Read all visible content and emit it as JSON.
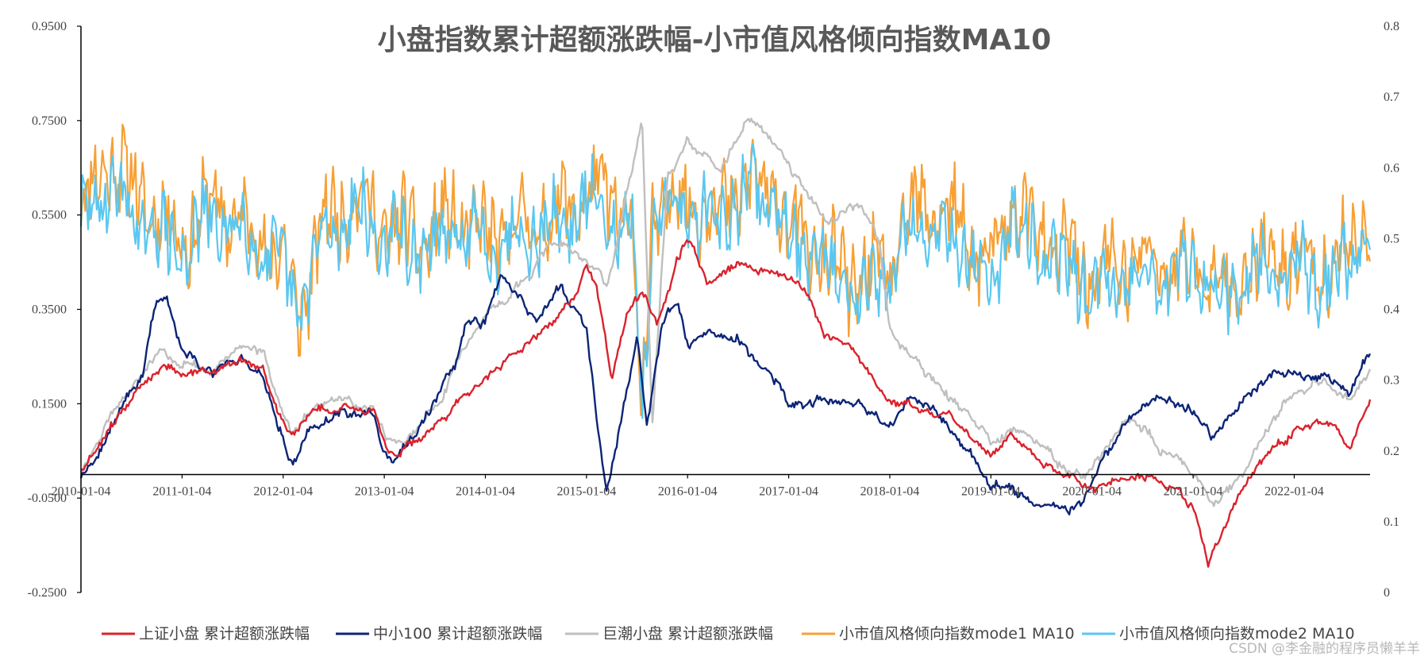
{
  "chart_data": {
    "type": "line",
    "title": "小盘指数累计超额涨跌幅-小市值风格倾向指数MA10",
    "watermark": "CSDN @李金融的程序员懒羊羊",
    "x_tick_labels": [
      "2010-01-04",
      "2011-01-04",
      "2012-01-04",
      "2013-01-04",
      "2014-01-04",
      "2015-01-04",
      "2016-01-04",
      "2017-01-04",
      "2018-01-04",
      "2019-01-04",
      "2020-01-04",
      "2021-01-04",
      "2022-01-04"
    ],
    "x_range": [
      2010.0,
      2022.75
    ],
    "y_left": {
      "ticks": [
        0.95,
        0.75,
        0.55,
        0.35,
        0.15,
        -0.05,
        -0.25
      ],
      "labels": [
        "0.9500",
        "0.7500",
        "0.5500",
        "0.3500",
        "0.1500",
        "-0.0500",
        "-0.2500"
      ],
      "range": [
        -0.25,
        0.95
      ]
    },
    "y_right": {
      "ticks": [
        0.8,
        0.7,
        0.6,
        0.5,
        0.4,
        0.3,
        0.2,
        0.1,
        0
      ],
      "labels": [
        "0.8",
        "0.7",
        "0.6",
        "0.5",
        "0.4",
        "0.3",
        "0.2",
        "0.1",
        "0"
      ],
      "range": [
        0,
        0.8
      ]
    },
    "series": [
      {
        "name": "小市值风格倾向指数mode1 MA10",
        "axis": "right",
        "color": "#f7a035",
        "kind": "noisy",
        "amp": 0.045,
        "seed": 11,
        "points": [
          [
            2010.0,
            0.54
          ],
          [
            2010.3,
            0.62
          ],
          [
            2010.5,
            0.57
          ],
          [
            2010.8,
            0.53
          ],
          [
            2011.0,
            0.5
          ],
          [
            2011.3,
            0.55
          ],
          [
            2011.6,
            0.52
          ],
          [
            2012.0,
            0.47
          ],
          [
            2012.15,
            0.39
          ],
          [
            2012.4,
            0.52
          ],
          [
            2012.7,
            0.56
          ],
          [
            2013.0,
            0.52
          ],
          [
            2013.4,
            0.5
          ],
          [
            2013.7,
            0.53
          ],
          [
            2014.0,
            0.5
          ],
          [
            2014.4,
            0.52
          ],
          [
            2014.8,
            0.54
          ],
          [
            2015.0,
            0.57
          ],
          [
            2015.3,
            0.55
          ],
          [
            2015.45,
            0.52
          ],
          [
            2015.55,
            0.24
          ],
          [
            2015.65,
            0.53
          ],
          [
            2015.9,
            0.56
          ],
          [
            2016.3,
            0.54
          ],
          [
            2016.6,
            0.58
          ],
          [
            2016.9,
            0.56
          ],
          [
            2017.0,
            0.52
          ],
          [
            2017.4,
            0.46
          ],
          [
            2017.7,
            0.44
          ],
          [
            2018.0,
            0.46
          ],
          [
            2018.3,
            0.55
          ],
          [
            2018.7,
            0.52
          ],
          [
            2019.0,
            0.45
          ],
          [
            2019.2,
            0.55
          ],
          [
            2019.6,
            0.49
          ],
          [
            2020.0,
            0.45
          ],
          [
            2020.5,
            0.47
          ],
          [
            2021.0,
            0.46
          ],
          [
            2021.3,
            0.43
          ],
          [
            2021.6,
            0.46
          ],
          [
            2022.0,
            0.47
          ],
          [
            2022.4,
            0.46
          ],
          [
            2022.75,
            0.53
          ]
        ]
      },
      {
        "name": "小市值风格倾向指数mode2 MA10",
        "axis": "right",
        "color": "#5bc7ef",
        "kind": "noisy",
        "amp": 0.038,
        "seed": 29,
        "points": [
          [
            2010.0,
            0.52
          ],
          [
            2010.3,
            0.58
          ],
          [
            2010.5,
            0.53
          ],
          [
            2010.8,
            0.5
          ],
          [
            2011.0,
            0.48
          ],
          [
            2011.3,
            0.53
          ],
          [
            2011.6,
            0.51
          ],
          [
            2012.0,
            0.46
          ],
          [
            2012.15,
            0.4
          ],
          [
            2012.4,
            0.5
          ],
          [
            2012.7,
            0.54
          ],
          [
            2013.0,
            0.5
          ],
          [
            2013.4,
            0.48
          ],
          [
            2013.7,
            0.51
          ],
          [
            2014.0,
            0.49
          ],
          [
            2014.4,
            0.51
          ],
          [
            2014.8,
            0.52
          ],
          [
            2015.0,
            0.55
          ],
          [
            2015.3,
            0.53
          ],
          [
            2015.45,
            0.5
          ],
          [
            2015.55,
            0.25
          ],
          [
            2015.65,
            0.52
          ],
          [
            2015.9,
            0.55
          ],
          [
            2016.3,
            0.52
          ],
          [
            2016.6,
            0.57
          ],
          [
            2016.9,
            0.55
          ],
          [
            2017.0,
            0.5
          ],
          [
            2017.4,
            0.45
          ],
          [
            2017.7,
            0.43
          ],
          [
            2018.0,
            0.45
          ],
          [
            2018.3,
            0.52
          ],
          [
            2018.7,
            0.5
          ],
          [
            2019.0,
            0.43
          ],
          [
            2019.2,
            0.53
          ],
          [
            2019.6,
            0.47
          ],
          [
            2020.0,
            0.43
          ],
          [
            2020.5,
            0.45
          ],
          [
            2021.0,
            0.45
          ],
          [
            2021.3,
            0.41
          ],
          [
            2021.6,
            0.45
          ],
          [
            2022.0,
            0.46
          ],
          [
            2022.4,
            0.44
          ],
          [
            2022.75,
            0.52
          ]
        ]
      },
      {
        "name": "巨潮小盘 累计超额涨跌幅",
        "axis": "left",
        "color": "#bfbfbf",
        "kind": "smooth",
        "amp": 0.012,
        "seed": 47,
        "points": [
          [
            2010.0,
            0.01
          ],
          [
            2010.2,
            0.08
          ],
          [
            2010.4,
            0.16
          ],
          [
            2010.6,
            0.2
          ],
          [
            2010.8,
            0.27
          ],
          [
            2011.0,
            0.24
          ],
          [
            2011.3,
            0.22
          ],
          [
            2011.6,
            0.27
          ],
          [
            2011.8,
            0.25
          ],
          [
            2012.0,
            0.12
          ],
          [
            2012.1,
            0.08
          ],
          [
            2012.3,
            0.14
          ],
          [
            2012.6,
            0.16
          ],
          [
            2012.9,
            0.14
          ],
          [
            2013.0,
            0.08
          ],
          [
            2013.2,
            0.07
          ],
          [
            2013.5,
            0.14
          ],
          [
            2013.8,
            0.28
          ],
          [
            2014.0,
            0.33
          ],
          [
            2014.2,
            0.36
          ],
          [
            2014.4,
            0.42
          ],
          [
            2014.6,
            0.48
          ],
          [
            2014.8,
            0.5
          ],
          [
            2015.0,
            0.45
          ],
          [
            2015.2,
            0.4
          ],
          [
            2015.4,
            0.6
          ],
          [
            2015.55,
            0.76
          ],
          [
            2015.65,
            0.1
          ],
          [
            2015.8,
            0.62
          ],
          [
            2016.0,
            0.72
          ],
          [
            2016.3,
            0.64
          ],
          [
            2016.6,
            0.75
          ],
          [
            2016.9,
            0.7
          ],
          [
            2017.0,
            0.66
          ],
          [
            2017.2,
            0.6
          ],
          [
            2017.4,
            0.54
          ],
          [
            2017.7,
            0.58
          ],
          [
            2017.9,
            0.48
          ],
          [
            2018.0,
            0.32
          ],
          [
            2018.2,
            0.25
          ],
          [
            2018.5,
            0.18
          ],
          [
            2018.8,
            0.12
          ],
          [
            2019.0,
            0.06
          ],
          [
            2019.3,
            0.1
          ],
          [
            2019.6,
            0.04
          ],
          [
            2019.9,
            -0.01
          ],
          [
            2020.1,
            0.03
          ],
          [
            2020.4,
            0.13
          ],
          [
            2020.7,
            0.06
          ],
          [
            2021.0,
            0.01
          ],
          [
            2021.2,
            -0.06
          ],
          [
            2021.4,
            -0.02
          ],
          [
            2021.7,
            0.08
          ],
          [
            2022.0,
            0.18
          ],
          [
            2022.3,
            0.2
          ],
          [
            2022.55,
            0.16
          ],
          [
            2022.75,
            0.22
          ]
        ]
      },
      {
        "name": "中小100 累计超额涨跌幅",
        "axis": "left",
        "color": "#0d2477",
        "kind": "smooth",
        "amp": 0.013,
        "seed": 63,
        "points": [
          [
            2010.0,
            -0.01
          ],
          [
            2010.2,
            0.06
          ],
          [
            2010.4,
            0.16
          ],
          [
            2010.6,
            0.21
          ],
          [
            2010.75,
            0.37
          ],
          [
            2010.85,
            0.38
          ],
          [
            2011.0,
            0.26
          ],
          [
            2011.3,
            0.22
          ],
          [
            2011.6,
            0.25
          ],
          [
            2011.8,
            0.21
          ],
          [
            2012.0,
            0.09
          ],
          [
            2012.1,
            0.03
          ],
          [
            2012.3,
            0.12
          ],
          [
            2012.6,
            0.14
          ],
          [
            2012.9,
            0.13
          ],
          [
            2013.0,
            0.05
          ],
          [
            2013.1,
            0.02
          ],
          [
            2013.4,
            0.12
          ],
          [
            2013.7,
            0.25
          ],
          [
            2013.8,
            0.33
          ],
          [
            2014.0,
            0.32
          ],
          [
            2014.15,
            0.42
          ],
          [
            2014.3,
            0.38
          ],
          [
            2014.5,
            0.33
          ],
          [
            2014.75,
            0.4
          ],
          [
            2015.0,
            0.3
          ],
          [
            2015.1,
            0.11
          ],
          [
            2015.2,
            -0.05
          ],
          [
            2015.35,
            0.12
          ],
          [
            2015.5,
            0.28
          ],
          [
            2015.6,
            0.1
          ],
          [
            2015.75,
            0.32
          ],
          [
            2015.9,
            0.36
          ],
          [
            2016.0,
            0.27
          ],
          [
            2016.2,
            0.3
          ],
          [
            2016.5,
            0.29
          ],
          [
            2016.7,
            0.23
          ],
          [
            2016.9,
            0.2
          ],
          [
            2017.0,
            0.14
          ],
          [
            2017.4,
            0.16
          ],
          [
            2017.7,
            0.14
          ],
          [
            2018.0,
            0.12
          ],
          [
            2018.2,
            0.15
          ],
          [
            2018.5,
            0.12
          ],
          [
            2018.8,
            0.04
          ],
          [
            2019.0,
            -0.02
          ],
          [
            2019.3,
            -0.04
          ],
          [
            2019.6,
            -0.08
          ],
          [
            2019.9,
            -0.07
          ],
          [
            2020.1,
            0.02
          ],
          [
            2020.4,
            0.14
          ],
          [
            2020.7,
            0.17
          ],
          [
            2021.0,
            0.14
          ],
          [
            2021.2,
            0.08
          ],
          [
            2021.5,
            0.16
          ],
          [
            2021.8,
            0.22
          ],
          [
            2022.0,
            0.23
          ],
          [
            2022.3,
            0.21
          ],
          [
            2022.55,
            0.17
          ],
          [
            2022.75,
            0.26
          ]
        ]
      },
      {
        "name": "上证小盘 累计超额涨跌幅",
        "axis": "left",
        "color": "#d9232d",
        "kind": "smooth",
        "amp": 0.011,
        "seed": 81,
        "points": [
          [
            2010.0,
            0.01
          ],
          [
            2010.2,
            0.07
          ],
          [
            2010.4,
            0.13
          ],
          [
            2010.6,
            0.18
          ],
          [
            2010.8,
            0.23
          ],
          [
            2011.0,
            0.22
          ],
          [
            2011.3,
            0.21
          ],
          [
            2011.6,
            0.25
          ],
          [
            2011.8,
            0.22
          ],
          [
            2012.0,
            0.11
          ],
          [
            2012.1,
            0.08
          ],
          [
            2012.3,
            0.13
          ],
          [
            2012.6,
            0.15
          ],
          [
            2012.9,
            0.13
          ],
          [
            2013.0,
            0.06
          ],
          [
            2013.1,
            0.04
          ],
          [
            2013.4,
            0.09
          ],
          [
            2013.7,
            0.15
          ],
          [
            2014.0,
            0.2
          ],
          [
            2014.3,
            0.26
          ],
          [
            2014.6,
            0.31
          ],
          [
            2014.9,
            0.38
          ],
          [
            2015.0,
            0.44
          ],
          [
            2015.1,
            0.4
          ],
          [
            2015.25,
            0.2
          ],
          [
            2015.4,
            0.33
          ],
          [
            2015.55,
            0.38
          ],
          [
            2015.7,
            0.32
          ],
          [
            2015.9,
            0.46
          ],
          [
            2016.0,
            0.5
          ],
          [
            2016.2,
            0.41
          ],
          [
            2016.5,
            0.44
          ],
          [
            2016.8,
            0.43
          ],
          [
            2017.0,
            0.42
          ],
          [
            2017.2,
            0.38
          ],
          [
            2017.35,
            0.3
          ],
          [
            2017.6,
            0.27
          ],
          [
            2017.9,
            0.18
          ],
          [
            2018.0,
            0.16
          ],
          [
            2018.3,
            0.14
          ],
          [
            2018.6,
            0.12
          ],
          [
            2018.8,
            0.08
          ],
          [
            2019.0,
            0.04
          ],
          [
            2019.2,
            0.08
          ],
          [
            2019.5,
            0.03
          ],
          [
            2019.8,
            -0.01
          ],
          [
            2020.0,
            -0.03
          ],
          [
            2020.3,
            0.0
          ],
          [
            2020.6,
            -0.01
          ],
          [
            2021.0,
            -0.06
          ],
          [
            2021.15,
            -0.2
          ],
          [
            2021.4,
            -0.07
          ],
          [
            2021.7,
            0.04
          ],
          [
            2022.0,
            0.09
          ],
          [
            2022.3,
            0.12
          ],
          [
            2022.55,
            0.06
          ],
          [
            2022.75,
            0.15
          ]
        ]
      }
    ],
    "legend": [
      {
        "label": "上证小盘 累计超额涨跌幅",
        "color": "#d9232d"
      },
      {
        "label": "中小100 累计超额涨跌幅",
        "color": "#0d2477"
      },
      {
        "label": "巨潮小盘 累计超额涨跌幅",
        "color": "#bfbfbf"
      },
      {
        "label": "小市值风格倾向指数mode1 MA10",
        "color": "#f7a035"
      },
      {
        "label": "小市值风格倾向指数mode2 MA10",
        "color": "#5bc7ef"
      }
    ]
  }
}
